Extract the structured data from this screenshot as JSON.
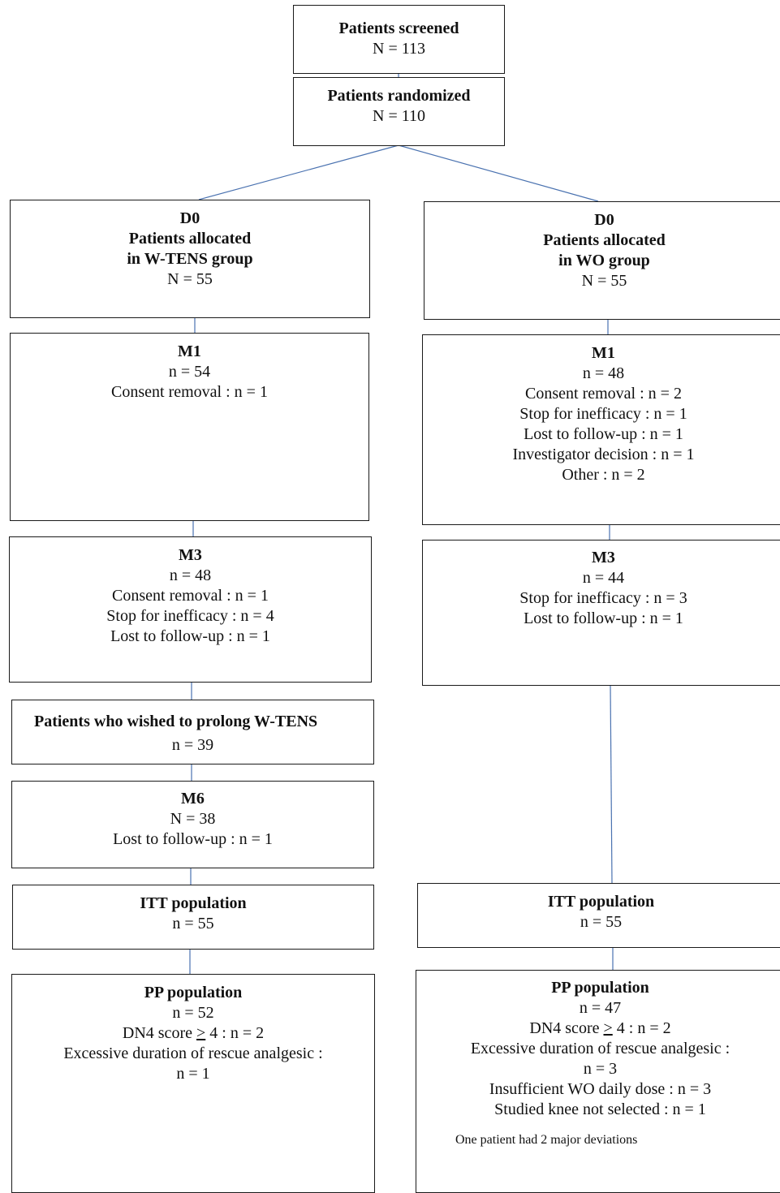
{
  "screened": {
    "title": "Patients screened",
    "count": "N = 113"
  },
  "randomized": {
    "title": "Patients randomized",
    "count": "N = 110"
  },
  "left": {
    "d0": {
      "label": "D0",
      "title_1": "Patients allocated",
      "title_2": "in W-TENS group",
      "count": "N = 55"
    },
    "m1": {
      "label": "M1",
      "count": "n = 54",
      "lines": [
        "Consent removal : n = 1"
      ]
    },
    "m3": {
      "label": "M3",
      "count": "n = 48",
      "lines": [
        "Consent removal : n = 1",
        "Stop for inefficacy : n = 4",
        "Lost to follow-up : n = 1"
      ]
    },
    "prolong": {
      "title": "Patients who wished to prolong W-TENS",
      "count": "n = 39"
    },
    "m6": {
      "label": "M6",
      "count": "N = 38",
      "lines": [
        "Lost to follow-up : n = 1"
      ]
    },
    "itt": {
      "title": "ITT population",
      "count": "n = 55"
    },
    "pp": {
      "title": "PP population",
      "count": "n = 52",
      "dn4_prefix": "DN4 score ",
      "dn4_symbol": ">",
      "dn4_suffix": " 4 : n = 2",
      "lines": [
        "Excessive duration of rescue analgesic :",
        "n = 1"
      ]
    }
  },
  "right": {
    "d0": {
      "label": "D0",
      "title_1": "Patients allocated",
      "title_2": "in WO group",
      "count": "N = 55"
    },
    "m1": {
      "label": "M1",
      "count": "n = 48",
      "lines": [
        "Consent removal : n = 2",
        "Stop for inefficacy : n = 1",
        "Lost to follow-up : n = 1",
        "Investigator decision : n = 1",
        "Other : n = 2"
      ]
    },
    "m3": {
      "label": "M3",
      "count": "n = 44",
      "lines": [
        "Stop for inefficacy : n = 3",
        "Lost to follow-up : n = 1"
      ]
    },
    "itt": {
      "title": "ITT population",
      "count": "n = 55"
    },
    "pp": {
      "title": "PP population",
      "count": "n = 47",
      "dn4_prefix": "DN4 score ",
      "dn4_symbol": ">",
      "dn4_suffix": " 4 : n = 2",
      "lines": [
        "Excessive duration of rescue analgesic :",
        "n = 3",
        "Insufficient WO daily dose : n = 3",
        "Studied knee not selected : n = 1"
      ],
      "note": "One patient had 2 major deviations"
    }
  },
  "colors": {
    "connector": "#4a72b0",
    "border": "#1a1a1a"
  }
}
